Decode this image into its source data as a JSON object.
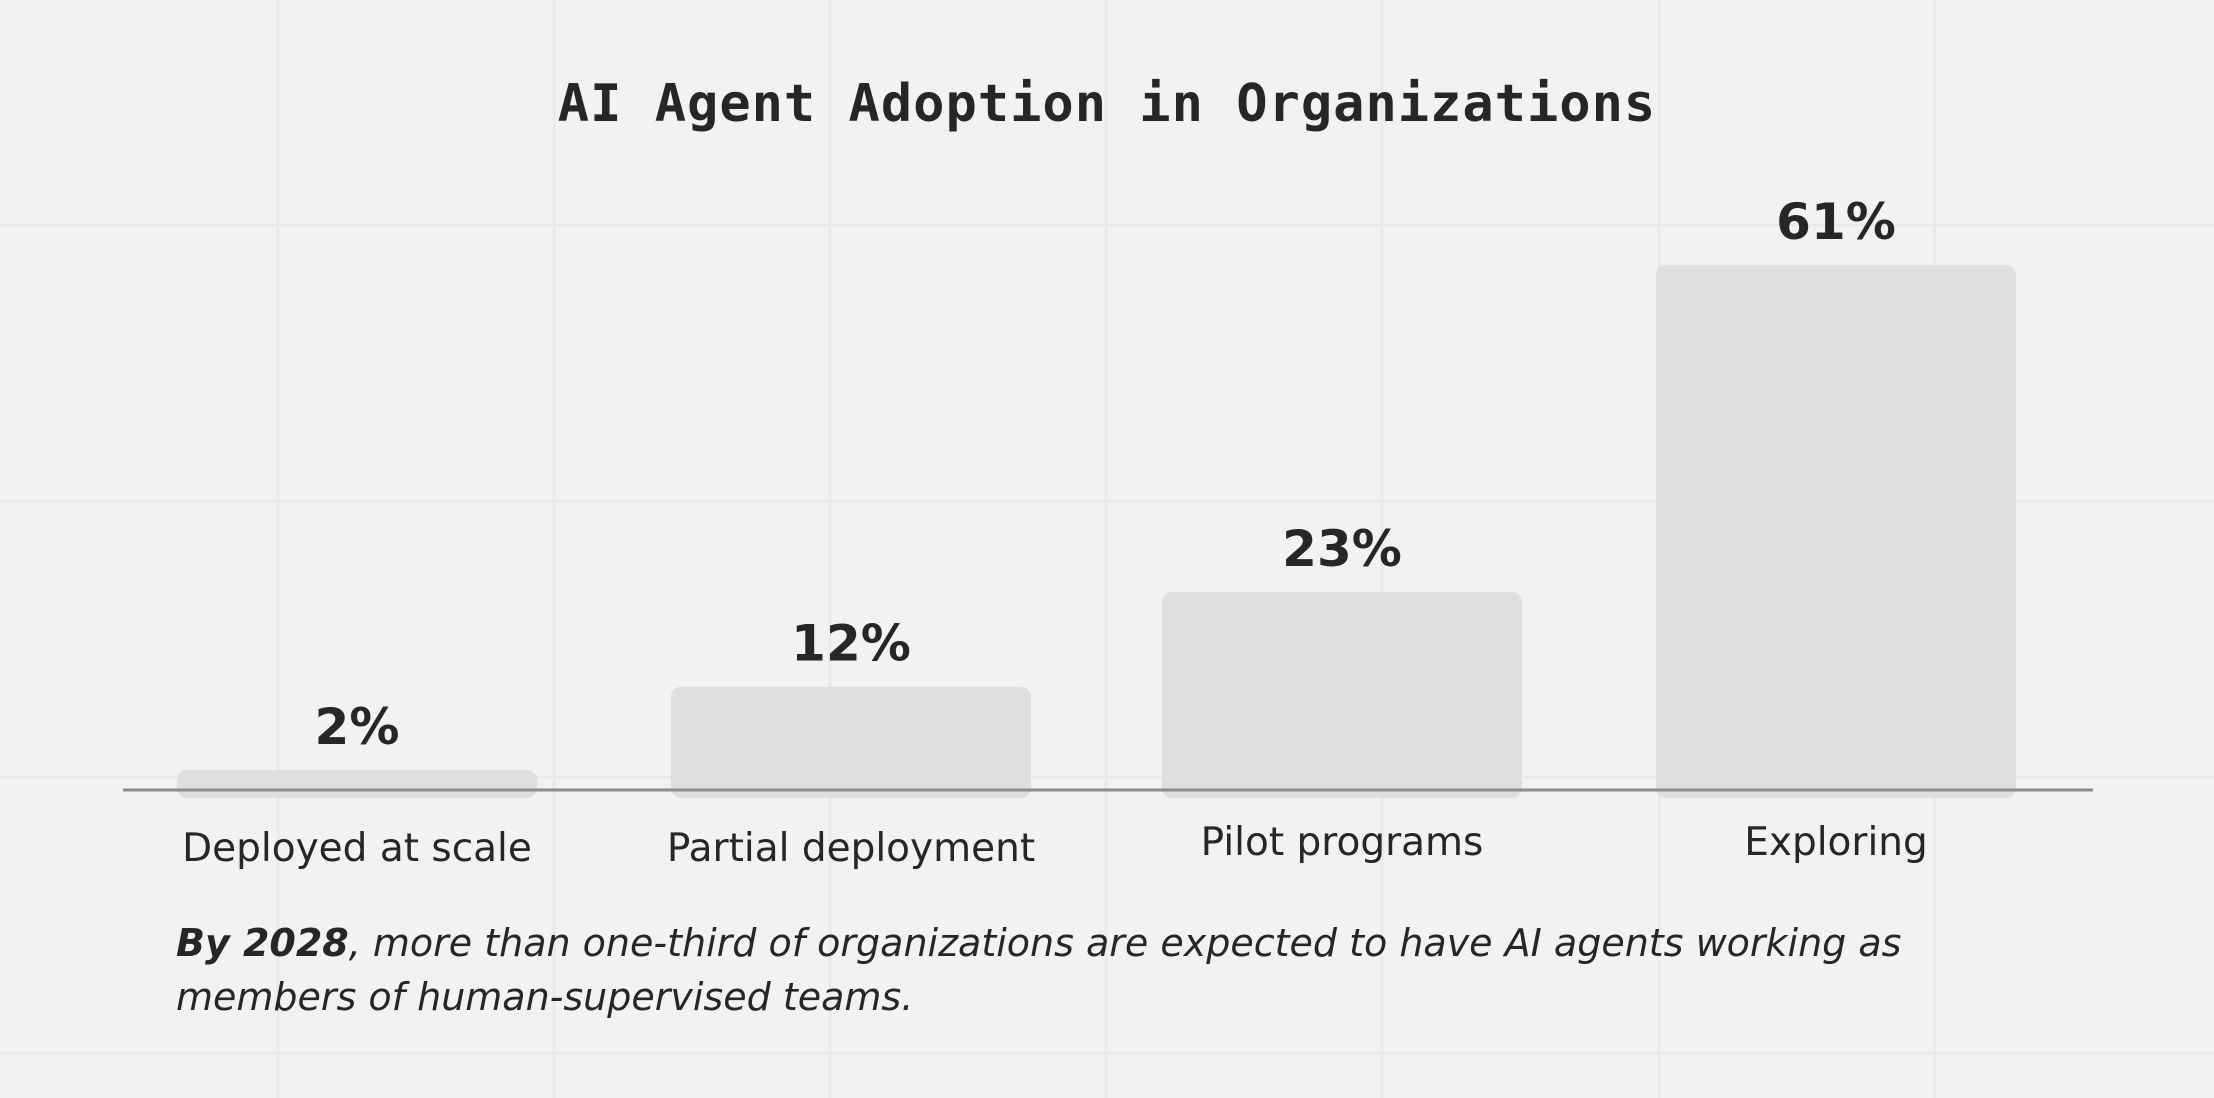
{
  "chart_data": {
    "type": "bar",
    "title": "AI Agent Adoption in Organizations",
    "categories": [
      "Deployed at scale",
      "Partial deployment",
      "Pilot programs",
      "Exploring"
    ],
    "values": [
      2,
      12,
      23,
      61
    ],
    "value_labels": [
      "2%",
      "12%",
      "23%",
      "61%"
    ],
    "xlabel": "",
    "ylabel": "",
    "ylim": [
      0,
      61
    ],
    "unit": "%",
    "grid": true,
    "colors": {
      "bar": "#dfdfdf",
      "text": "#262626",
      "axis": "#8c8c8c",
      "background": "#f2f2f2"
    }
  },
  "caption": {
    "lead": "By 2028",
    "text": ", more than one-third of organizations are expected to have AI agents working as members of human-supervised teams."
  }
}
